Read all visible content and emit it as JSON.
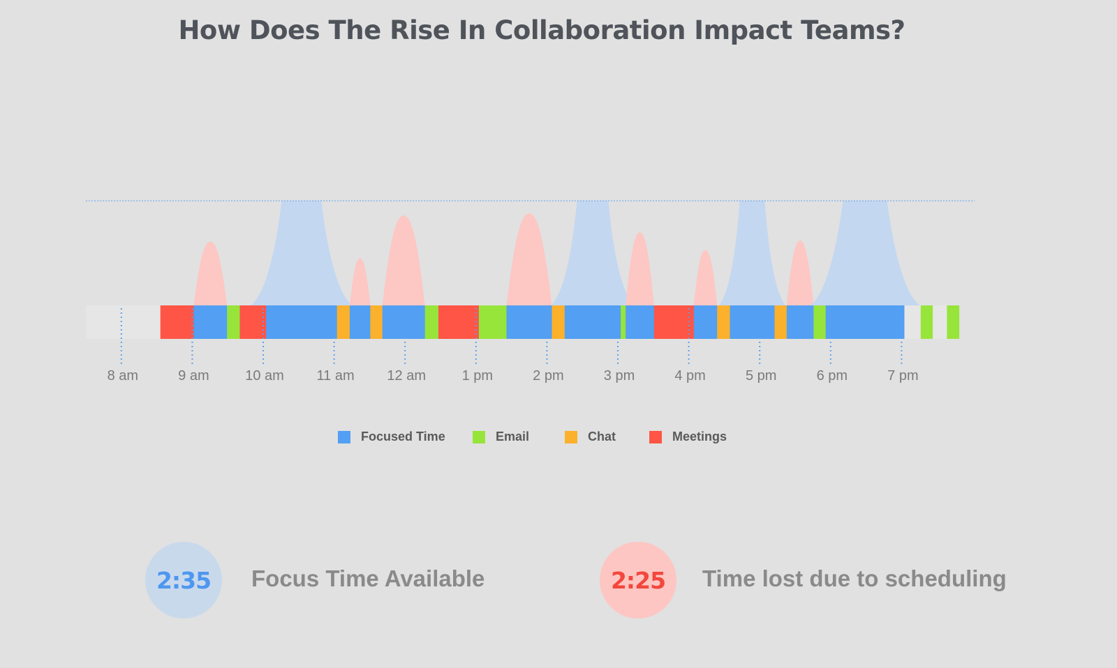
{
  "title": "How Does The Rise In Collaboration Impact Teams?",
  "colors": {
    "background": "#e1e1e1",
    "focused": "#529ff3",
    "email": "#97e43b",
    "chat": "#fbb12b",
    "meetings": "#fe5546",
    "idle": "#e6e6e6",
    "focus_peak": "#c3d7f0",
    "meeting_peak": "#fdc7c4",
    "guide": "#5f9fee"
  },
  "chart_data": {
    "type": "timeline",
    "x_unit": "hours since midnight",
    "xlim": [
      7.5,
      20.0
    ],
    "x_ticks": [
      {
        "t": 8,
        "label": "8 am"
      },
      {
        "t": 9,
        "label": "9 am"
      },
      {
        "t": 10,
        "label": "10 am"
      },
      {
        "t": 11,
        "label": "11 am"
      },
      {
        "t": 12,
        "label": "12 am"
      },
      {
        "t": 13,
        "label": "1 pm"
      },
      {
        "t": 14,
        "label": "2 pm"
      },
      {
        "t": 15,
        "label": "3 pm"
      },
      {
        "t": 16,
        "label": "4 pm"
      },
      {
        "t": 17,
        "label": "5 pm"
      },
      {
        "t": 18,
        "label": "6 pm"
      },
      {
        "t": 19,
        "label": "7 pm"
      }
    ],
    "legend": [
      {
        "key": "focused",
        "label": "Focused Time"
      },
      {
        "key": "email",
        "label": "Email"
      },
      {
        "key": "chat",
        "label": "Chat"
      },
      {
        "key": "meetings",
        "label": "Meetings"
      }
    ],
    "segments": [
      {
        "type": "idle",
        "start": 7.5,
        "end": 8.55
      },
      {
        "type": "meetings",
        "start": 8.55,
        "end": 9.02
      },
      {
        "type": "focused",
        "start": 9.02,
        "end": 9.49
      },
      {
        "type": "email",
        "start": 9.49,
        "end": 9.67
      },
      {
        "type": "meetings",
        "start": 9.67,
        "end": 10.04
      },
      {
        "type": "focused",
        "start": 10.04,
        "end": 11.04
      },
      {
        "type": "chat",
        "start": 11.04,
        "end": 11.22
      },
      {
        "type": "focused",
        "start": 11.22,
        "end": 11.51
      },
      {
        "type": "chat",
        "start": 11.51,
        "end": 11.68
      },
      {
        "type": "focused",
        "start": 11.68,
        "end": 12.28
      },
      {
        "type": "email",
        "start": 12.28,
        "end": 12.47
      },
      {
        "type": "meetings",
        "start": 12.47,
        "end": 13.04
      },
      {
        "type": "email",
        "start": 13.04,
        "end": 13.43
      },
      {
        "type": "focused",
        "start": 13.43,
        "end": 14.07
      },
      {
        "type": "chat",
        "start": 14.07,
        "end": 14.25
      },
      {
        "type": "focused",
        "start": 14.25,
        "end": 15.04
      },
      {
        "type": "email",
        "start": 15.04,
        "end": 15.11
      },
      {
        "type": "focused",
        "start": 15.11,
        "end": 15.51
      },
      {
        "type": "meetings",
        "start": 15.51,
        "end": 16.07
      },
      {
        "type": "focused",
        "start": 16.07,
        "end": 16.4
      },
      {
        "type": "chat",
        "start": 16.4,
        "end": 16.58
      },
      {
        "type": "focused",
        "start": 16.58,
        "end": 17.21
      },
      {
        "type": "chat",
        "start": 17.21,
        "end": 17.38
      },
      {
        "type": "focused",
        "start": 17.38,
        "end": 17.76
      },
      {
        "type": "email",
        "start": 17.76,
        "end": 17.93
      },
      {
        "type": "focused",
        "start": 17.93,
        "end": 19.04
      },
      {
        "type": "idle",
        "start": 19.04,
        "end": 19.27
      },
      {
        "type": "email",
        "start": 19.27,
        "end": 19.44
      },
      {
        "type": "idle",
        "start": 19.44,
        "end": 19.64
      },
      {
        "type": "email",
        "start": 19.64,
        "end": 19.81
      }
    ],
    "peaks": [
      {
        "type": "meeting",
        "start": 9.02,
        "end": 9.49,
        "height": 0.61
      },
      {
        "type": "focus",
        "start": 10.04,
        "end": 11.04,
        "height": 1.0
      },
      {
        "type": "meeting",
        "start": 11.22,
        "end": 11.51,
        "height": 0.45
      },
      {
        "type": "meeting",
        "start": 11.68,
        "end": 12.28,
        "height": 0.86
      },
      {
        "type": "meeting",
        "start": 13.43,
        "end": 14.07,
        "height": 0.88
      },
      {
        "type": "focus",
        "start": 14.25,
        "end": 15.04,
        "height": 1.0
      },
      {
        "type": "meeting",
        "start": 15.11,
        "end": 15.51,
        "height": 0.7
      },
      {
        "type": "meeting",
        "start": 16.07,
        "end": 16.4,
        "height": 0.53
      },
      {
        "type": "focus",
        "start": 16.58,
        "end": 17.21,
        "height": 1.0
      },
      {
        "type": "meeting",
        "start": 17.38,
        "end": 17.76,
        "height": 0.62
      },
      {
        "type": "focus",
        "start": 17.93,
        "end": 19.04,
        "height": 1.0
      }
    ]
  },
  "stats": {
    "focus": {
      "value": "2:35",
      "label": "Focus Time Available"
    },
    "lost": {
      "value": "2:25",
      "label": "Time lost due to scheduling"
    }
  }
}
